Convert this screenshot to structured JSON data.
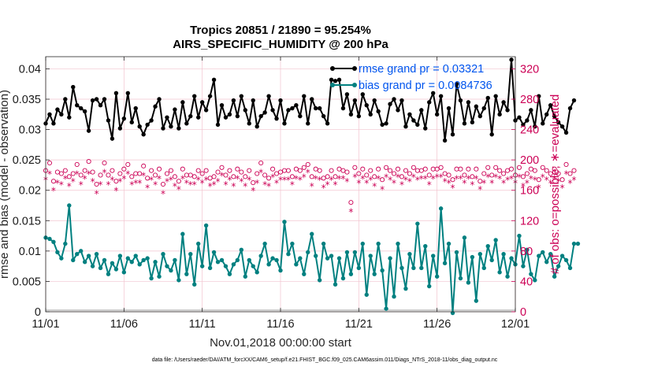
{
  "colors": {
    "rmse": "#000000",
    "bias": "#008080",
    "obs": "#cc0055",
    "legend_text": "#0055ee",
    "grid": "#f2c4cf",
    "axis": "#262626"
  },
  "chart_data": {
    "type": "line",
    "title": "Tropics 20851 / 21890 = 95.254%",
    "subtitle": "AIRS_SPECIFIC_HUMIDITY @ 200 hPa",
    "xlabel": "Nov.01,2018 00:00:00 start",
    "ylabel_left": "rmse and bias (model - observation)",
    "ylabel_right": "# of obs: o=possible; ∗=evaluated",
    "footer": "data file: /Users/raeder/DAI/ATM_forcXX/CAM6_setup/f.e21.FHIST_BGC.f09_025.CAM6assim.011/Diags_NTrS_2018-11/obs_diag_output.nc",
    "xlim": [
      0,
      30
    ],
    "ylim": [
      0,
      0.042
    ],
    "ylim_right": [
      0,
      336
    ],
    "x_ticks": [
      0,
      5,
      10,
      15,
      20,
      25,
      30
    ],
    "x_tick_labels": [
      "11/01",
      "11/06",
      "11/11",
      "11/16",
      "11/21",
      "11/26",
      "12/01"
    ],
    "y_ticks": [
      0,
      0.005,
      0.01,
      0.015,
      0.02,
      0.025,
      0.03,
      0.035,
      0.04
    ],
    "y_tick_labels": [
      "0",
      "0.005",
      "0.01",
      "0.015",
      "0.02",
      "0.025",
      "0.03",
      "0.035",
      "0.04"
    ],
    "y_ticks_right": [
      0,
      40,
      80,
      120,
      160,
      200,
      240,
      280,
      320
    ],
    "y_tick_labels_right": [
      "0",
      "40",
      "80",
      "120",
      "160",
      "200",
      "240",
      "280",
      "320"
    ],
    "x_start": 0.0,
    "x_step": 0.25,
    "legend": [
      {
        "name": "rmse grand pr = 0.03321"
      },
      {
        "name": "bias grand pr = 0.0084736"
      }
    ],
    "series": [
      {
        "name": "rmse",
        "values": [
          0.031,
          0.0325,
          0.031,
          0.0333,
          0.0325,
          0.035,
          0.032,
          0.037,
          0.034,
          0.0335,
          0.033,
          0.0298,
          0.0348,
          0.035,
          0.034,
          0.035,
          0.0315,
          0.0285,
          0.036,
          0.0302,
          0.0318,
          0.036,
          0.0312,
          0.0335,
          0.0305,
          0.0292,
          0.0308,
          0.0315,
          0.0338,
          0.035,
          0.0302,
          0.032,
          0.0305,
          0.0333,
          0.0302,
          0.0345,
          0.031,
          0.0322,
          0.0355,
          0.032,
          0.0345,
          0.0332,
          0.0355,
          0.0382,
          0.0308,
          0.034,
          0.032,
          0.0325,
          0.0348,
          0.0322,
          0.0355,
          0.0332,
          0.031,
          0.0348,
          0.0305,
          0.0322,
          0.0328,
          0.0355,
          0.0332,
          0.0318,
          0.0348,
          0.031,
          0.0332,
          0.0335,
          0.034,
          0.0322,
          0.0355,
          0.031,
          0.035,
          0.0335,
          0.0335,
          0.0322,
          0.031,
          0.0382,
          0.038,
          0.0382,
          0.0335,
          0.0358,
          0.0325,
          0.0348,
          0.0322,
          0.0358,
          0.034,
          0.0325,
          0.0348,
          0.033,
          0.0308,
          0.031,
          0.0342,
          0.035,
          0.0332,
          0.0348,
          0.0305,
          0.0325,
          0.0315,
          0.0308,
          0.0332,
          0.0302,
          0.0345,
          0.036,
          0.0325,
          0.0355,
          0.0282,
          0.0335,
          0.0292,
          0.0375,
          0.0348,
          0.031,
          0.0345,
          0.0312,
          0.0338,
          0.0322,
          0.0335,
          0.0352,
          0.0292,
          0.0355,
          0.0325,
          0.0345,
          0.0332,
          0.0415,
          0.0315,
          0.032,
          0.0308,
          0.0315,
          0.0332,
          0.0305,
          0.0355,
          0.031,
          0.0325,
          0.034,
          0.0322,
          0.0312,
          0.0305,
          0.0295,
          0.0335,
          0.0348
        ]
      },
      {
        "name": "bias",
        "values": [
          0.0122,
          0.012,
          0.0115,
          0.0098,
          0.0088,
          0.0112,
          0.0175,
          0.0085,
          0.0095,
          0.01,
          0.0082,
          0.0092,
          0.0075,
          0.0095,
          0.0072,
          0.0085,
          0.0062,
          0.008,
          0.007,
          0.0092,
          0.0065,
          0.0088,
          0.0082,
          0.0092,
          0.0078,
          0.0085,
          0.0088,
          0.0055,
          0.0082,
          0.0058,
          0.0095,
          0.0075,
          0.0068,
          0.0085,
          0.0052,
          0.0128,
          0.0062,
          0.0095,
          0.0045,
          0.0112,
          0.0075,
          0.0142,
          0.0072,
          0.0098,
          0.0082,
          0.0085,
          0.0075,
          0.0062,
          0.0078,
          0.0085,
          0.0102,
          0.0058,
          0.0085,
          0.0075,
          0.0065,
          0.0092,
          0.0112,
          0.0078,
          0.0088,
          0.0085,
          0.0068,
          0.0148,
          0.0095,
          0.0112,
          0.0078,
          0.0088,
          0.0062,
          0.0098,
          0.0128,
          0.0092,
          0.0052,
          0.0112,
          0.0088,
          0.0092,
          0.0045,
          0.0088,
          0.0055,
          0.0098,
          0.0062,
          0.0098,
          0.0072,
          0.0112,
          0.0028,
          0.0092,
          0.0062,
          0.0112,
          0.0068,
          0.0005,
          0.0088,
          0.0025,
          0.0112,
          0.0072,
          0.0038,
          0.0095,
          0.0072,
          0.0145,
          0.0072,
          0.0108,
          0.0042,
          0.0092,
          0.0058,
          0.017,
          0.008,
          0.0112,
          -0.0002,
          0.0098,
          0.0055,
          0.0122,
          0.0048,
          0.009,
          0.0018,
          0.0095,
          0.0072,
          0.0108,
          0.0085,
          0.0118,
          0.0065,
          0.0095,
          0.0058,
          0.0088,
          0.0078,
          0.0125,
          0.0075,
          0.0102,
          0.0062,
          0.0052,
          0.0092,
          0.0098,
          0.0082,
          0.0095,
          0.0058,
          0.0075,
          0.0092,
          0.0085,
          0.0072,
          0.0112,
          0.0112
        ]
      },
      {
        "name": "obs possible",
        "values": [
          186,
          196,
          172,
          184,
          182,
          186,
          178,
          182,
          194,
          180,
          186,
          198,
          184,
          168,
          180,
          196,
          180,
          186,
          172,
          182,
          188,
          194,
          178,
          182,
          182,
          192,
          176,
          186,
          180,
          188,
          168,
          182,
          186,
          178,
          172,
          188,
          180,
          180,
          178,
          186,
          182,
          186,
          176,
          178,
          184,
          190,
          180,
          186,
          178,
          188,
          184,
          178,
          186,
          170,
          182,
          196,
          180,
          176,
          188,
          182,
          184,
          186,
          186,
          178,
          188,
          186,
          190,
          194,
          178,
          188,
          186,
          176,
          178,
          186,
          178,
          188,
          186,
          184,
          144,
          190,
          182,
          188,
          180,
          186,
          178,
          188,
          174,
          190,
          186,
          182,
          188,
          178,
          186,
          182,
          190,
          186,
          186,
          188,
          180,
          188,
          188,
          190,
          182,
          180,
          174,
          188,
          188,
          180,
          188,
          178,
          188,
          172,
          182,
          190,
          180,
          190,
          186,
          182,
          186,
          188,
          180,
          190,
          178,
          182,
          188,
          186,
          174,
          190,
          186,
          182,
          188,
          182,
          174,
          194,
          182,
          186
        ]
      },
      {
        "name": "obs evaluated",
        "values": [
          174,
          182,
          160,
          170,
          168,
          176,
          166,
          172,
          182,
          168,
          176,
          182,
          172,
          156,
          168,
          184,
          168,
          174,
          160,
          172,
          176,
          182,
          168,
          170,
          170,
          180,
          164,
          174,
          168,
          176,
          156,
          172,
          174,
          166,
          162,
          176,
          170,
          168,
          168,
          174,
          170,
          174,
          166,
          168,
          172,
          180,
          168,
          174,
          166,
          176,
          172,
          166,
          174,
          160,
          170,
          184,
          168,
          166,
          178,
          170,
          174,
          174,
          174,
          168,
          176,
          174,
          178,
          184,
          166,
          176,
          174,
          164,
          168,
          174,
          168,
          176,
          176,
          172,
          132,
          178,
          170,
          176,
          170,
          174,
          166,
          176,
          162,
          178,
          174,
          170,
          178,
          168,
          174,
          172,
          178,
          174,
          176,
          176,
          168,
          176,
          178,
          178,
          172,
          170,
          164,
          176,
          176,
          170,
          176,
          168,
          176,
          162,
          170,
          178,
          170,
          178,
          176,
          170,
          174,
          176,
          170,
          178,
          166,
          170,
          176,
          174,
          164,
          178,
          174,
          170,
          176,
          172,
          164,
          182,
          170,
          174
        ]
      }
    ]
  }
}
